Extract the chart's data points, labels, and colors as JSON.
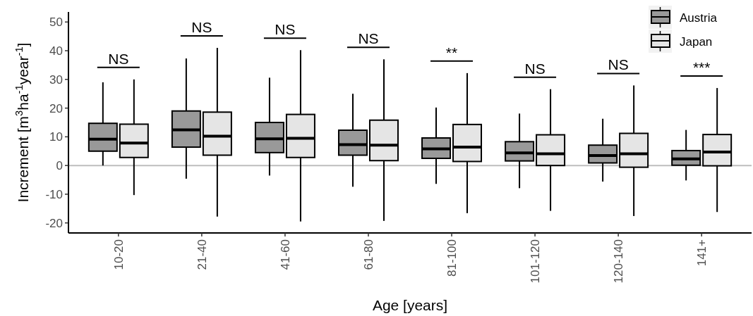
{
  "chart_data": {
    "type": "box",
    "xlabel": "Age [years]",
    "ylabel": "Increment [m$^{3}$ha$^{-1}$year$^{-1}$]",
    "categories": [
      "10-20",
      "21-40",
      "41-60",
      "61-80",
      "81-100",
      "101-120",
      "120-140",
      "141+"
    ],
    "ylim": [
      -23.5,
      53.5
    ],
    "yticks": [
      -20,
      -10,
      0,
      10,
      20,
      30,
      40,
      50
    ],
    "grid": false,
    "legend": "top right",
    "series": [
      {
        "name": "Austria",
        "color": "#999999",
        "boxes": [
          {
            "low": 0,
            "q1": 5,
            "median": 9.2,
            "q3": 14.7,
            "high": 29
          },
          {
            "low": -4.6,
            "q1": 6.4,
            "median": 12.4,
            "q3": 19,
            "high": 37.3
          },
          {
            "low": -3.5,
            "q1": 4.5,
            "median": 9.3,
            "q3": 15,
            "high": 30.6
          },
          {
            "low": -7.4,
            "q1": 3.6,
            "median": 7.3,
            "q3": 12.3,
            "high": 25
          },
          {
            "low": -6.4,
            "q1": 2.5,
            "median": 5.8,
            "q3": 9.6,
            "high": 20.2
          },
          {
            "low": -7.9,
            "q1": 1.6,
            "median": 4.4,
            "q3": 8.3,
            "high": 18.1
          },
          {
            "low": -5.6,
            "q1": 0.9,
            "median": 3.5,
            "q3": 7.1,
            "high": 16.3
          },
          {
            "low": -5.2,
            "q1": 0.1,
            "median": 2.3,
            "q3": 5.2,
            "high": 12.4
          }
        ]
      },
      {
        "name": "Japan",
        "color": "#e5e5e5",
        "boxes": [
          {
            "low": -10.3,
            "q1": 2.8,
            "median": 7.8,
            "q3": 14.4,
            "high": 30
          },
          {
            "low": -17.8,
            "q1": 3.6,
            "median": 10.2,
            "q3": 18.6,
            "high": 41
          },
          {
            "low": -19.5,
            "q1": 2.8,
            "median": 9.5,
            "q3": 17.8,
            "high": 40.2
          },
          {
            "low": -19.3,
            "q1": 1.7,
            "median": 7.1,
            "q3": 15.8,
            "high": 37
          },
          {
            "low": -16.6,
            "q1": 1.4,
            "median": 6.4,
            "q3": 14.3,
            "high": 32.2
          },
          {
            "low": -15.8,
            "q1": 0,
            "median": 4.1,
            "q3": 10.7,
            "high": 26.6
          },
          {
            "low": -17.6,
            "q1": -0.6,
            "median": 4.1,
            "q3": 11.2,
            "high": 27.9
          },
          {
            "low": -16.2,
            "q1": -0.1,
            "median": 4.7,
            "q3": 10.8,
            "high": 27
          }
        ]
      }
    ],
    "ref_lines": [
      {
        "axis": "y",
        "value": 0,
        "color": "#bebebe"
      }
    ],
    "annotations": [
      "NS",
      "NS",
      "NS",
      "NS",
      "**",
      "NS",
      "NS",
      "***"
    ]
  }
}
